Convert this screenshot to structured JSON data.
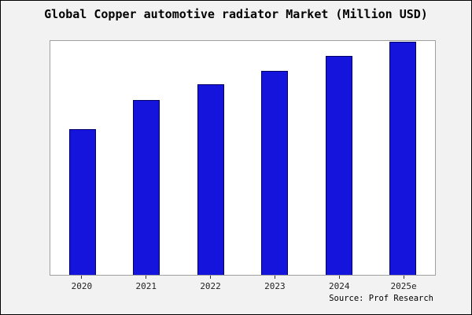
{
  "title": "Global Copper automotive radiator Market (Million USD)",
  "source": "Source: Prof Research",
  "colors": {
    "page_background": "#f2f2f2",
    "plot_background": "#ffffff",
    "bar_fill": "#1414dc",
    "bar_edge": "#000066",
    "frame_border": "#a0a0a0",
    "outer_border": "#000000"
  },
  "chart_data": {
    "type": "bar",
    "title": "Global Copper automotive radiator Market (Million USD)",
    "categories": [
      "2020",
      "2021",
      "2022",
      "2023",
      "2024",
      "2025e"
    ],
    "values": [
      187,
      224,
      244,
      262,
      281,
      299
    ],
    "xlabel": "",
    "ylabel": "",
    "ylim": [
      0,
      300
    ],
    "grid": false,
    "legend": false,
    "y_axis_ticks_visible": false,
    "bar_color": "#1414dc",
    "bar_edge_color": "#000066",
    "note": "no y-axis tick labels shown; values are relative heights estimated from pixels"
  }
}
